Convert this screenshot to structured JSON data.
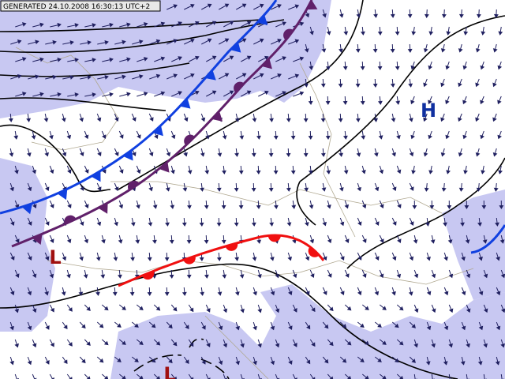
{
  "header": {
    "generated": "GENERATED 24.10.2008 16:30:13 UTC+2"
  },
  "pressure_centers": [
    {
      "label": "H"
    },
    {
      "label": "L"
    },
    {
      "label": "L"
    }
  ]
}
